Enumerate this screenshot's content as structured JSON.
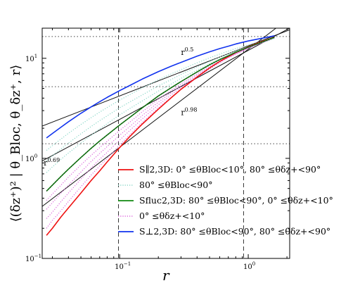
{
  "chart_data": {
    "type": "line",
    "xscale": "log",
    "yscale": "log",
    "xlim": [
      0.025,
      2.1
    ],
    "ylim": [
      0.1,
      20
    ],
    "xlabel": "r",
    "ylabel": "⟨(δz⁺)² | θ_Bloc, θ_δz⁺, r⟩",
    "x_ticks": [
      {
        "value": 0.1,
        "label": "10",
        "exp": "−1"
      },
      {
        "value": 1,
        "label": "10",
        "exp": "0"
      }
    ],
    "y_ticks": [
      {
        "value": 0.1,
        "label": "10",
        "exp": "−1"
      },
      {
        "value": 1,
        "label": "10",
        "exp": "0"
      },
      {
        "value": 10,
        "label": "10",
        "exp": "1"
      }
    ],
    "reference_lines": {
      "vertical_dashed": [
        0.098,
        0.92
      ],
      "horizontal_dotted": [
        1.4,
        5.2,
        16.5
      ]
    },
    "power_laws": [
      {
        "label": "r",
        "exp": "0.5",
        "x_start": 0.025,
        "x_end": 2.1,
        "y_at_1": 13.3
      },
      {
        "label": "r",
        "exp": "0.98",
        "x_start": 0.025,
        "x_end": 2.1,
        "y_at_1": 12.3
      },
      {
        "label": "r",
        "exp": "0.69",
        "x_start": 0.025,
        "x_end": 2.1,
        "y_at_1": 12.0
      }
    ],
    "x": [
      0.027,
      0.03,
      0.035,
      0.04,
      0.05,
      0.06,
      0.07,
      0.08,
      0.1,
      0.12,
      0.15,
      0.2,
      0.25,
      0.3,
      0.4,
      0.5,
      0.6,
      0.7,
      0.8,
      1.0,
      1.2,
      1.4,
      1.6
    ],
    "series": [
      {
        "role": "parallel",
        "color": "#ee1111",
        "style": "solid",
        "values": [
          0.17,
          0.2,
          0.26,
          0.32,
          0.45,
          0.6,
          0.75,
          0.92,
          1.28,
          1.65,
          2.2,
          3.1,
          4.0,
          4.9,
          6.5,
          8.0,
          9.3,
          10.4,
          11.4,
          13.0,
          14.3,
          15.3,
          16.3
        ]
      },
      {
        "role": "theta-b-mid",
        "color": "#8ad8c8",
        "style": "dotted",
        "values": [
          0.72,
          0.82,
          0.98,
          1.13,
          1.42,
          1.7,
          1.97,
          2.22,
          2.72,
          3.15,
          3.75,
          4.7,
          5.5,
          6.3,
          7.6,
          8.8,
          9.8,
          10.7,
          11.5,
          12.8,
          13.9,
          14.8,
          15.8
        ]
      },
      {
        "role": "theta-b-mid",
        "color": "#8ad8c8",
        "style": "dotted",
        "values": [
          0.94,
          1.06,
          1.24,
          1.42,
          1.76,
          2.08,
          2.38,
          2.66,
          3.2,
          3.66,
          4.3,
          5.3,
          6.1,
          6.9,
          8.2,
          9.3,
          10.3,
          11.1,
          11.9,
          13.1,
          14.1,
          15.0,
          15.9
        ]
      },
      {
        "role": "theta-b-mid",
        "color": "#8ad8c8",
        "style": "dotted",
        "values": [
          1.2,
          1.34,
          1.56,
          1.78,
          2.18,
          2.55,
          2.9,
          3.22,
          3.82,
          4.33,
          5.05,
          6.1,
          6.95,
          7.7,
          9.0,
          10.1,
          11.0,
          11.8,
          12.5,
          13.6,
          14.5,
          15.3,
          16.1
        ]
      },
      {
        "role": "theta-dz-mid",
        "color": "#dd66dd",
        "style": "dotted",
        "values": [
          0.2,
          0.24,
          0.3,
          0.37,
          0.52,
          0.68,
          0.84,
          1.0,
          1.36,
          1.72,
          2.28,
          3.2,
          4.05,
          4.9,
          6.4,
          7.8,
          9.0,
          10.1,
          11.0,
          12.6,
          13.9,
          15.0,
          16.1
        ]
      },
      {
        "role": "theta-dz-mid",
        "color": "#dd66dd",
        "style": "dotted",
        "values": [
          0.25,
          0.29,
          0.37,
          0.45,
          0.62,
          0.8,
          0.98,
          1.15,
          1.52,
          1.9,
          2.48,
          3.42,
          4.28,
          5.1,
          6.6,
          8.0,
          9.2,
          10.2,
          11.1,
          12.6,
          13.9,
          15.0,
          16.1
        ]
      },
      {
        "role": "theta-dz-mid",
        "color": "#dd66dd",
        "style": "dotted",
        "values": [
          0.31,
          0.36,
          0.45,
          0.54,
          0.73,
          0.93,
          1.12,
          1.31,
          1.7,
          2.08,
          2.68,
          3.65,
          4.5,
          5.3,
          6.8,
          8.1,
          9.3,
          10.3,
          11.2,
          12.7,
          13.9,
          15.0,
          16.1
        ]
      },
      {
        "role": "theta-dz-mid",
        "color": "#dd66dd",
        "style": "dotted",
        "values": [
          0.38,
          0.44,
          0.54,
          0.65,
          0.86,
          1.07,
          1.28,
          1.48,
          1.9,
          2.3,
          2.92,
          3.9,
          4.75,
          5.55,
          7.0,
          8.3,
          9.4,
          10.4,
          11.3,
          12.8,
          14.0,
          15.1,
          16.1
        ]
      },
      {
        "role": "fluctuation",
        "color": "#118811",
        "style": "solid",
        "values": [
          0.47,
          0.54,
          0.66,
          0.78,
          1.02,
          1.26,
          1.49,
          1.71,
          2.15,
          2.57,
          3.2,
          4.2,
          5.05,
          5.85,
          7.3,
          8.6,
          9.7,
          10.6,
          11.5,
          12.9,
          14.1,
          15.2,
          16.2
        ]
      },
      {
        "role": "perpendicular",
        "color": "#1133ee",
        "style": "solid",
        "values": [
          1.6,
          1.77,
          2.05,
          2.32,
          2.82,
          3.27,
          3.68,
          4.07,
          4.75,
          5.35,
          6.2,
          7.35,
          8.3,
          9.1,
          10.5,
          11.6,
          12.5,
          13.2,
          13.9,
          14.9,
          15.6,
          16.2,
          16.8
        ]
      }
    ],
    "annotations": [
      {
        "text": "r",
        "exp": "0.5",
        "x": 0.3,
        "y": 10.8
      },
      {
        "text": "r",
        "exp": "0.98",
        "x": 0.3,
        "y": 2.7
      },
      {
        "text": "r",
        "exp": "0.69",
        "x": 0.027,
        "y": 0.85
      }
    ],
    "legend": {
      "placement": "lower-right",
      "entries": [
        {
          "color": "#ee1111",
          "style": "solid",
          "label": "S∥2,3D: 0° ≤θBloc<10°, 80° ≤θδz+<90°"
        },
        {
          "color": "#8ad8c8",
          "style": "dotted",
          "label": "80° ≤θBloc<90°"
        },
        {
          "color": "#118811",
          "style": "solid",
          "label": "Sfluc2,3D: 80° ≤θBloc<90°, 0° ≤θδz+<10°"
        },
        {
          "color": "#dd66dd",
          "style": "dotted",
          "label": "0° ≤θδz+<10°"
        },
        {
          "color": "#1133ee",
          "style": "solid",
          "label": "S⊥2,3D: 80° ≤θBloc<90°, 80° ≤θδz+<90°"
        }
      ]
    }
  }
}
